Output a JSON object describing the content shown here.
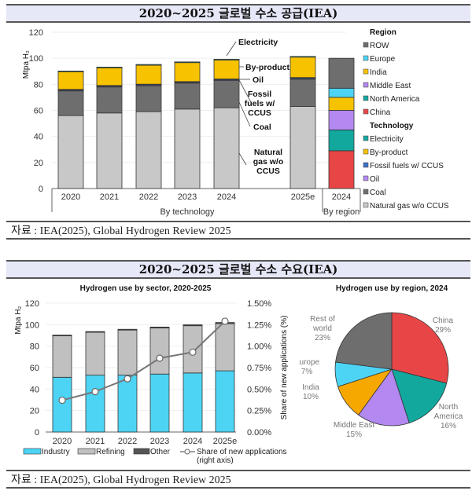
{
  "supply_section": {
    "title": "2020~2025 글로벌 수소 공급(IEA)",
    "source": "자료 : IEA(2025), Global Hydrogen Review 2025"
  },
  "demand_section": {
    "title": "2020~2025 글로벌 수소 수요(IEA)",
    "source": "자료 : IEA(2025), Global Hydrogen Review 2025"
  },
  "chart_data": [
    {
      "type": "bar",
      "stacked": true,
      "title": "2020~2025 글로벌 수소 공급(IEA)",
      "ylabel": "Mtpa H₂",
      "ylim": [
        0,
        120
      ],
      "yticks": [
        0,
        20,
        40,
        60,
        80,
        100,
        120
      ],
      "grid": true,
      "group_labels": [
        "By technology",
        "By region"
      ],
      "categories": [
        "2020",
        "2021",
        "2022",
        "2023",
        "2024",
        "2025e"
      ],
      "series": [
        {
          "name": "Natural gas w/o CCUS",
          "color": "#c8c8c8",
          "values": [
            56,
            58,
            59,
            61,
            62,
            63
          ]
        },
        {
          "name": "Coal",
          "color": "#6e6e6e",
          "values": [
            19,
            20,
            20,
            20,
            21,
            21
          ]
        },
        {
          "name": "Oil",
          "color": "#a07fe0",
          "values": [
            0.5,
            0.5,
            0.5,
            0.5,
            0.5,
            0.5
          ]
        },
        {
          "name": "Fossil fuels w/ CCUS",
          "color": "#3a6fc4",
          "values": [
            0.6,
            0.6,
            0.6,
            0.6,
            0.6,
            0.7
          ]
        },
        {
          "name": "By-product",
          "color": "#f7c200",
          "values": [
            14,
            14,
            15,
            15,
            15,
            16
          ]
        },
        {
          "name": "Electricity",
          "color": "#13a89e",
          "values": [
            0.1,
            0.1,
            0.1,
            0.1,
            0.1,
            0.2
          ]
        }
      ],
      "annotations": [
        "Electricity",
        "By-product",
        "Oil",
        "Fossil fuels w/ CCUS",
        "Coal",
        "Natural gas w/o CCUS"
      ],
      "region_bar": {
        "category": "2024",
        "series": [
          {
            "name": "China",
            "color": "#e84646",
            "value": 29
          },
          {
            "name": "North America",
            "color": "#13a89e",
            "value": 16
          },
          {
            "name": "Middle East",
            "color": "#b388f0",
            "value": 15
          },
          {
            "name": "India",
            "color": "#f7c200",
            "value": 10
          },
          {
            "name": "Europe",
            "color": "#4dd4f5",
            "value": 7
          },
          {
            "name": "ROW",
            "color": "#6e6e6e",
            "value": 23
          }
        ]
      },
      "legend": {
        "placement": "right",
        "region_heading": "Region",
        "region_items": [
          {
            "label": "ROW",
            "color": "#6e6e6e"
          },
          {
            "label": "Europe",
            "color": "#4dd4f5"
          },
          {
            "label": "India",
            "color": "#f7c200"
          },
          {
            "label": "Middle East",
            "color": "#b388f0"
          },
          {
            "label": "North America",
            "color": "#13a89e"
          },
          {
            "label": "China",
            "color": "#e84646"
          }
        ],
        "technology_heading": "Technology",
        "technology_items": [
          {
            "label": "Electricity",
            "color": "#13a89e"
          },
          {
            "label": "By-product",
            "color": "#f7c200"
          },
          {
            "label": "Fossil fuels w/ CCUS",
            "color": "#3a6fc4"
          },
          {
            "label": "Oil",
            "color": "#b388f0"
          },
          {
            "label": "Coal",
            "color": "#6e6e6e"
          },
          {
            "label": "Natural gas w/o CCUS",
            "color": "#c8c8c8"
          }
        ]
      }
    },
    {
      "type": "bar",
      "stacked": true,
      "title": "Hydrogen use by sector, 2020-2025",
      "ylabel": "Mtpa H₂",
      "y2label": "Share of new applications (%)",
      "ylim": [
        0,
        120
      ],
      "yticks": [
        0,
        20,
        40,
        60,
        80,
        100,
        120
      ],
      "y2lim": [
        0,
        1.5
      ],
      "y2ticks": [
        "0.00%",
        "0.25%",
        "0.50%",
        "0.75%",
        "1.00%",
        "1.25%",
        "1.50%"
      ],
      "grid": true,
      "categories": [
        "2020",
        "2021",
        "2022",
        "2023",
        "2024",
        "2025e"
      ],
      "series": [
        {
          "name": "Industry",
          "color": "#4dd4f5",
          "values": [
            51,
            53,
            53,
            54,
            55,
            57
          ]
        },
        {
          "name": "Refining",
          "color": "#c0c0c0",
          "values": [
            39,
            40,
            42,
            43,
            44,
            44
          ]
        },
        {
          "name": "Other",
          "color": "#555555",
          "values": [
            0.3,
            0.6,
            0.7,
            0.8,
            0.9,
            1.0
          ]
        }
      ],
      "line_series": {
        "name": "Share of new applications",
        "axis": "right",
        "values": [
          0.37,
          0.47,
          0.62,
          0.86,
          0.93,
          1.29
        ]
      },
      "legend": {
        "placement": "bottom",
        "items": [
          "Industry",
          "Refining",
          "Other",
          "Share of new applications"
        ],
        "line_note": "(right axis)"
      }
    },
    {
      "type": "pie",
      "title": "Hydrogen use by region, 2024",
      "slices": [
        {
          "name": "China",
          "label": "China",
          "value": 29,
          "color": "#e84646"
        },
        {
          "name": "North America",
          "label": "North America",
          "value": 16,
          "color": "#13a89e"
        },
        {
          "name": "Middle East",
          "label": "Middle East",
          "value": 15,
          "color": "#b388f0"
        },
        {
          "name": "India",
          "label": "India",
          "value": 10,
          "color": "#f7a800"
        },
        {
          "name": "Europe",
          "label": "Europe",
          "value": 7,
          "color": "#4dd4f5"
        },
        {
          "name": "Rest of world",
          "label": "Rest of world",
          "value": 23,
          "color": "#6e6e6e"
        }
      ]
    }
  ]
}
